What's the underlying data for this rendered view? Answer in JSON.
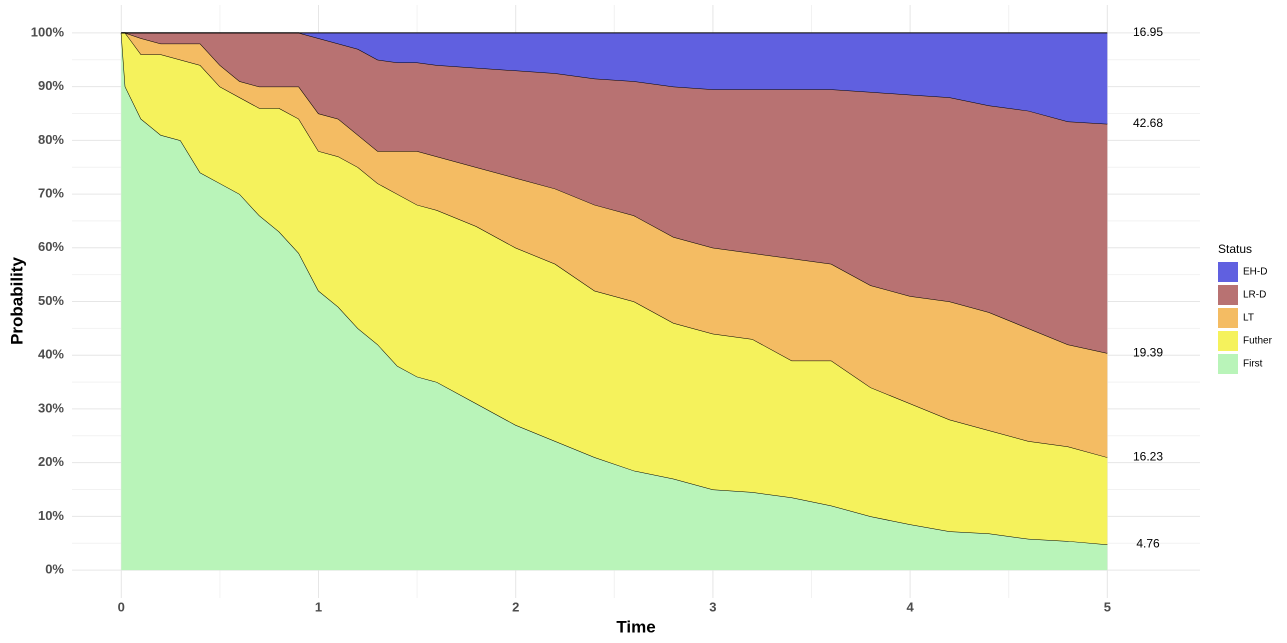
{
  "chart_data": {
    "type": "stacked_area",
    "x_label": "Time",
    "y_label": "Probability",
    "legend_title": "Status",
    "legend_position": "right",
    "grid": true,
    "label_last": true,
    "xlim": [
      -0.25,
      5.47
    ],
    "ylim": [
      -5.2,
      105.2
    ],
    "xticks": [
      0,
      1,
      2,
      3,
      4,
      5
    ],
    "yticks": [
      {
        "value": 0,
        "label": "0%"
      },
      {
        "value": 10,
        "label": "10%"
      },
      {
        "value": 20,
        "label": "20%"
      },
      {
        "value": 30,
        "label": "30%"
      },
      {
        "value": 40,
        "label": "40%"
      },
      {
        "value": 50,
        "label": "50%"
      },
      {
        "value": 60,
        "label": "60%"
      },
      {
        "value": 70,
        "label": "70%"
      },
      {
        "value": 80,
        "label": "80%"
      },
      {
        "value": 90,
        "label": "90%"
      },
      {
        "value": 100,
        "label": "100%"
      }
    ],
    "x": [
      0,
      0.02,
      0.1,
      0.2,
      0.3,
      0.4,
      0.5,
      0.6,
      0.7,
      0.8,
      0.9,
      1.0,
      1.1,
      1.2,
      1.3,
      1.4,
      1.5,
      1.6,
      1.8,
      2.0,
      2.2,
      2.4,
      2.6,
      2.8,
      3.0,
      3.2,
      3.4,
      3.6,
      3.8,
      4.0,
      4.2,
      4.4,
      4.6,
      4.8,
      5.0
    ],
    "series": [
      {
        "name": "First",
        "color": "#b9f4b9",
        "values": [
          100,
          90,
          84,
          81,
          80,
          74,
          72,
          70,
          66,
          63,
          59,
          52,
          49,
          45,
          42,
          38,
          36,
          35,
          31,
          27,
          24,
          21,
          18.5,
          17,
          15,
          14.5,
          13.5,
          12,
          10,
          8.5,
          7.2,
          6.8,
          5.8,
          5.4,
          4.76
        ]
      },
      {
        "name": "Futher",
        "color": "#f5f25c",
        "values": [
          0,
          10,
          12,
          15,
          15,
          20,
          18,
          18,
          20,
          23,
          25,
          26,
          28,
          30,
          30,
          32,
          32,
          32,
          33,
          33,
          33,
          31,
          31.5,
          29,
          29,
          28.5,
          25.5,
          27,
          24,
          22.5,
          20.8,
          19.2,
          18.2,
          17.6,
          16.23
        ]
      },
      {
        "name": "LT",
        "color": "#f4bc63",
        "values": [
          0,
          0,
          3,
          2,
          3,
          4,
          4,
          3,
          4,
          4,
          6,
          7,
          7,
          6,
          6,
          8,
          10,
          10,
          11,
          13,
          14,
          16,
          16,
          16,
          16,
          16,
          19,
          18,
          19,
          20,
          22,
          22,
          21,
          19,
          19.39
        ]
      },
      {
        "name": "LR-D",
        "color": "#b87272",
        "values": [
          0,
          0,
          1,
          2,
          2,
          2,
          6,
          9,
          10,
          10,
          10,
          14,
          14,
          16,
          17,
          16.5,
          16.5,
          17,
          18.5,
          20,
          21.5,
          23.5,
          25,
          28,
          29.5,
          30.5,
          31.5,
          32.5,
          36,
          37.5,
          38,
          38.5,
          40.5,
          41.5,
          42.68
        ]
      },
      {
        "name": "EH-D",
        "color": "#6060e0",
        "values": [
          0,
          0,
          0,
          0,
          0,
          0,
          0,
          0,
          0,
          0,
          0,
          1,
          2,
          3,
          5,
          5.5,
          5.5,
          6,
          6.5,
          7,
          7.5,
          8.5,
          9,
          10,
          10.5,
          10.5,
          10.5,
          10.5,
          11,
          11.5,
          12,
          13.5,
          14.5,
          16.5,
          16.95
        ]
      }
    ]
  }
}
